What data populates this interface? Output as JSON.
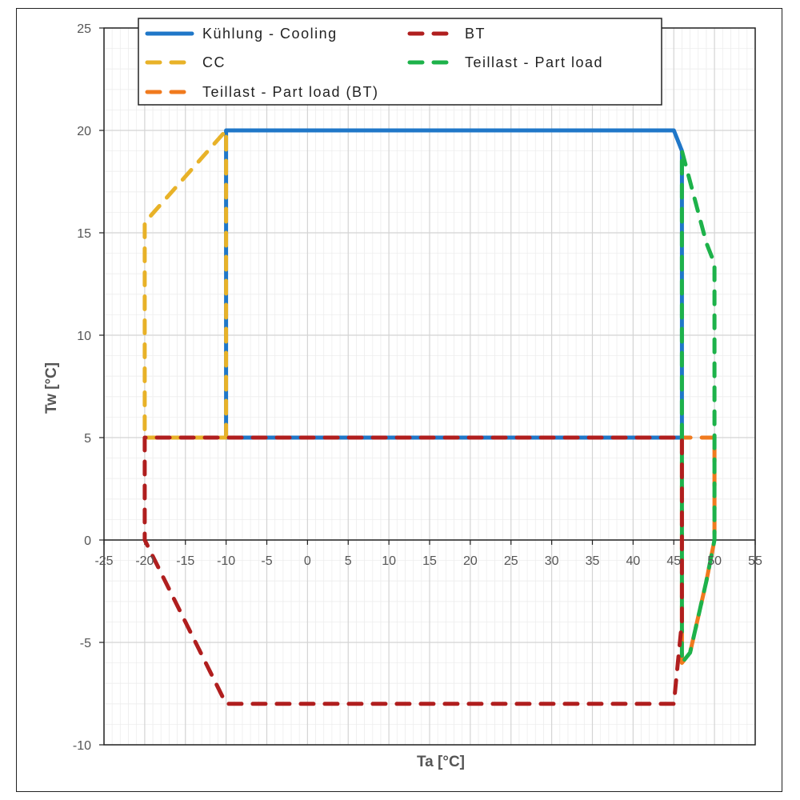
{
  "chart_data": {
    "type": "line",
    "xlabel": "Ta [°C]",
    "ylabel": "Tw [°C]",
    "xlim": [
      -25,
      55
    ],
    "ylim": [
      -10,
      25
    ],
    "x_ticks": [
      "-25",
      "-20",
      "-15",
      "-10",
      "-5",
      "0",
      "5",
      "10",
      "15",
      "20",
      "25",
      "30",
      "35",
      "40",
      "45",
      "50",
      "55"
    ],
    "y_ticks": [
      "-10",
      "-5",
      "0",
      "5",
      "10",
      "15",
      "20",
      "25"
    ],
    "grid": true,
    "legend_placement": "top-center",
    "series": [
      {
        "name": "Kühlung - Cooling",
        "color": "#1F77C8",
        "style": "solid",
        "points": [
          [
            -10,
            5
          ],
          [
            -10,
            20
          ],
          [
            45,
            20
          ],
          [
            46,
            19
          ],
          [
            46,
            5
          ],
          [
            -10,
            5
          ]
        ]
      },
      {
        "name": "BT",
        "color": "#B01E1E",
        "style": "dashed",
        "points": [
          [
            -20,
            5
          ],
          [
            -20,
            0
          ],
          [
            -10,
            -8
          ],
          [
            45,
            -8
          ],
          [
            45.5,
            -6
          ],
          [
            46,
            -4
          ],
          [
            46,
            5
          ],
          [
            -20,
            5
          ]
        ]
      },
      {
        "name": "CC",
        "color": "#E8B228",
        "style": "dashed",
        "points": [
          [
            -10,
            5
          ],
          [
            -10,
            20
          ],
          [
            -20,
            15.5
          ],
          [
            -20,
            5
          ],
          [
            -10,
            5
          ]
        ]
      },
      {
        "name": "Teillast - Part load",
        "color": "#1DB24A",
        "style": "dashed",
        "points": [
          [
            46,
            5
          ],
          [
            46,
            19
          ],
          [
            47,
            17.5
          ],
          [
            49,
            14.5
          ],
          [
            50,
            13.5
          ],
          [
            50,
            0
          ],
          [
            49,
            -2
          ],
          [
            47,
            -5.5
          ],
          [
            46,
            -6
          ],
          [
            46,
            5
          ]
        ]
      },
      {
        "name": "Teillast - Part load (BT)",
        "color": "#F07A1E",
        "style": "dashed",
        "points": [
          [
            46,
            5
          ],
          [
            46,
            3
          ],
          [
            46,
            0
          ],
          [
            46,
            -2.5
          ],
          [
            46,
            -6
          ],
          [
            47,
            -5.5
          ],
          [
            49,
            -2
          ],
          [
            50,
            0
          ],
          [
            50,
            5
          ],
          [
            48,
            5
          ],
          [
            46,
            5
          ]
        ]
      }
    ]
  }
}
